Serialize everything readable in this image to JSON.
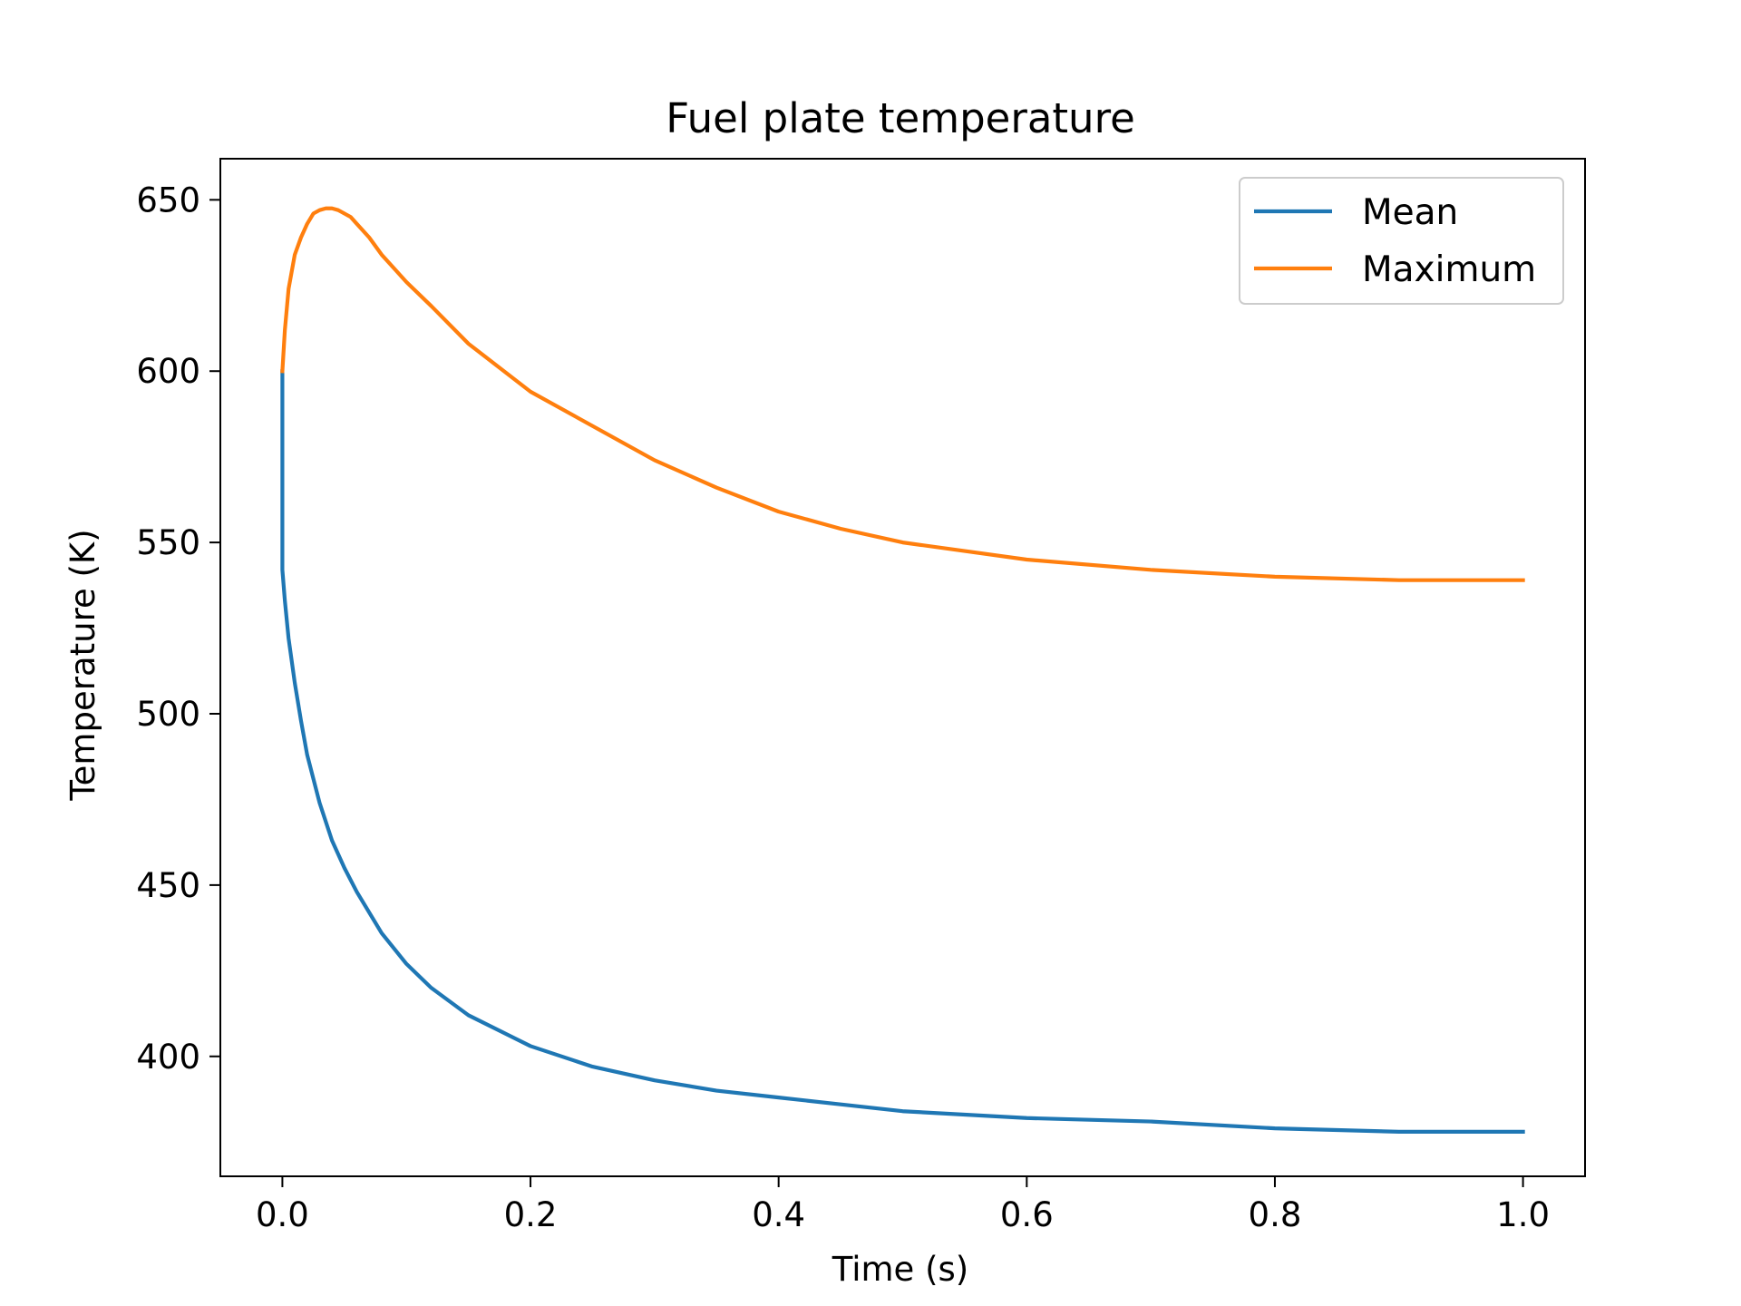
{
  "chart_data": {
    "type": "line",
    "title": "Fuel plate temperature",
    "xlabel": "Time (s)",
    "ylabel": "Temperature (K)",
    "xlim": [
      -0.05,
      1.05
    ],
    "ylim": [
      365,
      662
    ],
    "xticks": [
      0.0,
      0.2,
      0.4,
      0.6,
      0.8,
      1.0
    ],
    "xtick_labels": [
      "0.0",
      "0.2",
      "0.4",
      "0.6",
      "0.8",
      "1.0"
    ],
    "yticks": [
      400,
      450,
      500,
      550,
      600,
      650
    ],
    "ytick_labels": [
      "400",
      "450",
      "500",
      "550",
      "600",
      "650"
    ],
    "grid": false,
    "legend_position": "top-right",
    "series": [
      {
        "name": "Mean",
        "color": "#1f77b4",
        "x": [
          0.0,
          0.0,
          0.002,
          0.005,
          0.01,
          0.015,
          0.02,
          0.03,
          0.04,
          0.05,
          0.06,
          0.08,
          0.1,
          0.12,
          0.15,
          0.2,
          0.25,
          0.3,
          0.35,
          0.4,
          0.45,
          0.5,
          0.6,
          0.7,
          0.8,
          0.9,
          1.0
        ],
        "y": [
          600,
          542,
          533,
          522,
          509,
          498,
          488,
          474,
          463,
          455,
          448,
          436,
          427,
          420,
          412,
          403,
          397,
          393,
          390,
          388,
          386,
          384,
          382,
          381,
          379,
          378,
          378
        ]
      },
      {
        "name": "Maximum",
        "color": "#ff7f0e",
        "x": [
          0.0,
          0.002,
          0.005,
          0.01,
          0.015,
          0.02,
          0.025,
          0.03,
          0.035,
          0.04,
          0.045,
          0.05,
          0.055,
          0.06,
          0.07,
          0.08,
          0.09,
          0.1,
          0.12,
          0.15,
          0.2,
          0.25,
          0.3,
          0.35,
          0.4,
          0.45,
          0.5,
          0.6,
          0.7,
          0.8,
          0.9,
          1.0
        ],
        "y": [
          600,
          612,
          624,
          634,
          639,
          643,
          646,
          647,
          647.5,
          647.5,
          647,
          646,
          645,
          643,
          639,
          634,
          630,
          626,
          619,
          608,
          594,
          584,
          574,
          566,
          559,
          554,
          550,
          545,
          542,
          540,
          539,
          539
        ]
      }
    ]
  }
}
